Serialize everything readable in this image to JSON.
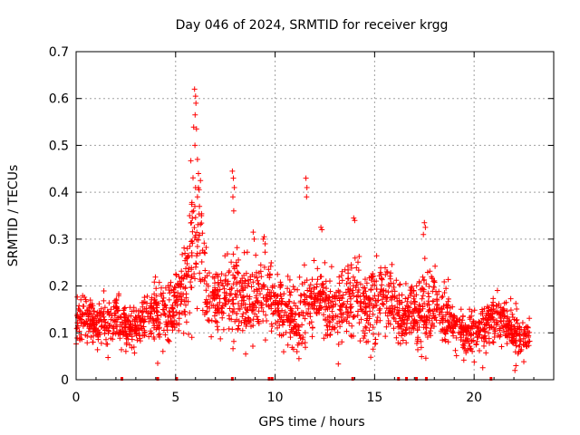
{
  "chart_data": {
    "type": "scatter",
    "title": "Day 046 of 2024, SRMTID for receiver krgg",
    "xlabel": "GPS time / hours",
    "ylabel": "SRMTID / TECUs",
    "xlim": [
      0,
      24
    ],
    "ylim": [
      0,
      0.7
    ],
    "xticks": [
      0,
      5,
      10,
      15,
      20
    ],
    "xtick_labels": [
      "0",
      "5",
      "10",
      "15",
      "20"
    ],
    "yticks": [
      0,
      0.1,
      0.2,
      0.3,
      0.4,
      0.5,
      0.6,
      0.7
    ],
    "ytick_labels": [
      "0",
      "0.1",
      "0.2",
      "0.3",
      "0.4",
      "0.5",
      "0.6",
      "0.7"
    ],
    "grid": true,
    "marker": "+",
    "series": [
      {
        "name": "SRMTID",
        "color": "#ff0000",
        "anchor_profile": {
          "x": [
            0,
            0.5,
            1,
            1.5,
            2,
            2.5,
            3,
            3.5,
            4,
            4.5,
            5,
            5.5,
            5.9,
            6.2,
            6.6,
            7,
            7.5,
            7.9,
            8.5,
            9,
            9.5,
            10,
            10.5,
            11,
            11.5,
            12,
            12.5,
            13,
            13.5,
            14,
            14.5,
            15,
            15.5,
            16,
            16.5,
            17,
            17.5,
            18,
            18.5,
            19,
            19.5,
            20,
            20.5,
            21,
            21.5,
            22,
            22.5,
            22.8
          ],
          "center": [
            0.13,
            0.13,
            0.12,
            0.12,
            0.13,
            0.11,
            0.12,
            0.13,
            0.15,
            0.14,
            0.16,
            0.2,
            0.28,
            0.3,
            0.16,
            0.17,
            0.18,
            0.2,
            0.16,
            0.17,
            0.19,
            0.17,
            0.15,
            0.12,
            0.16,
            0.18,
            0.16,
            0.15,
            0.17,
            0.18,
            0.15,
            0.17,
            0.19,
            0.16,
            0.13,
            0.14,
            0.15,
            0.17,
            0.14,
            0.12,
            0.1,
            0.1,
            0.11,
            0.13,
            0.12,
            0.1,
            0.09,
            0.1
          ],
          "spread": [
            0.04,
            0.04,
            0.04,
            0.04,
            0.04,
            0.035,
            0.04,
            0.04,
            0.05,
            0.05,
            0.05,
            0.08,
            0.15,
            0.12,
            0.06,
            0.06,
            0.07,
            0.09,
            0.07,
            0.07,
            0.07,
            0.06,
            0.06,
            0.05,
            0.07,
            0.06,
            0.06,
            0.06,
            0.07,
            0.07,
            0.06,
            0.07,
            0.07,
            0.06,
            0.05,
            0.06,
            0.07,
            0.06,
            0.05,
            0.04,
            0.035,
            0.035,
            0.04,
            0.04,
            0.04,
            0.04,
            0.035,
            0.035
          ]
        },
        "highlight_points": [
          {
            "x": 5.95,
            "y": 0.62
          },
          {
            "x": 6.0,
            "y": 0.605
          },
          {
            "x": 6.02,
            "y": 0.59
          },
          {
            "x": 5.98,
            "y": 0.565
          },
          {
            "x": 6.05,
            "y": 0.535
          },
          {
            "x": 5.97,
            "y": 0.5
          },
          {
            "x": 6.1,
            "y": 0.47
          },
          {
            "x": 6.15,
            "y": 0.44
          },
          {
            "x": 6.25,
            "y": 0.425
          },
          {
            "x": 6.0,
            "y": 0.41
          },
          {
            "x": 6.1,
            "y": 0.39
          },
          {
            "x": 6.2,
            "y": 0.37
          },
          {
            "x": 5.9,
            "y": 0.36
          },
          {
            "x": 5.7,
            "y": 0.35
          },
          {
            "x": 6.3,
            "y": 0.35
          },
          {
            "x": 7.85,
            "y": 0.445
          },
          {
            "x": 7.9,
            "y": 0.43
          },
          {
            "x": 7.95,
            "y": 0.41
          },
          {
            "x": 7.88,
            "y": 0.39
          },
          {
            "x": 7.92,
            "y": 0.36
          },
          {
            "x": 11.55,
            "y": 0.43
          },
          {
            "x": 11.6,
            "y": 0.41
          },
          {
            "x": 11.58,
            "y": 0.39
          },
          {
            "x": 12.3,
            "y": 0.325
          },
          {
            "x": 12.35,
            "y": 0.32
          },
          {
            "x": 13.95,
            "y": 0.345
          },
          {
            "x": 14.0,
            "y": 0.34
          },
          {
            "x": 17.5,
            "y": 0.335
          },
          {
            "x": 17.55,
            "y": 0.325
          },
          {
            "x": 17.45,
            "y": 0.31
          },
          {
            "x": 9.4,
            "y": 0.3
          },
          {
            "x": 9.5,
            "y": 0.29
          },
          {
            "x": 9.45,
            "y": 0.305
          },
          {
            "x": 8.9,
            "y": 0.315
          },
          {
            "x": 8.95,
            "y": 0.3
          },
          {
            "x": 11.1,
            "y": 0.06
          },
          {
            "x": 11.2,
            "y": 0.045
          },
          {
            "x": 22.05,
            "y": 0.02
          },
          {
            "x": 4.1,
            "y": 0.035
          },
          {
            "x": 22.1,
            "y": 0.03
          }
        ],
        "gap_markers_x": [
          2.3,
          4.1,
          5.05,
          7.85,
          9.7,
          9.85,
          13.9,
          16.2,
          16.6,
          17.1,
          17.6,
          20.85
        ]
      }
    ]
  }
}
